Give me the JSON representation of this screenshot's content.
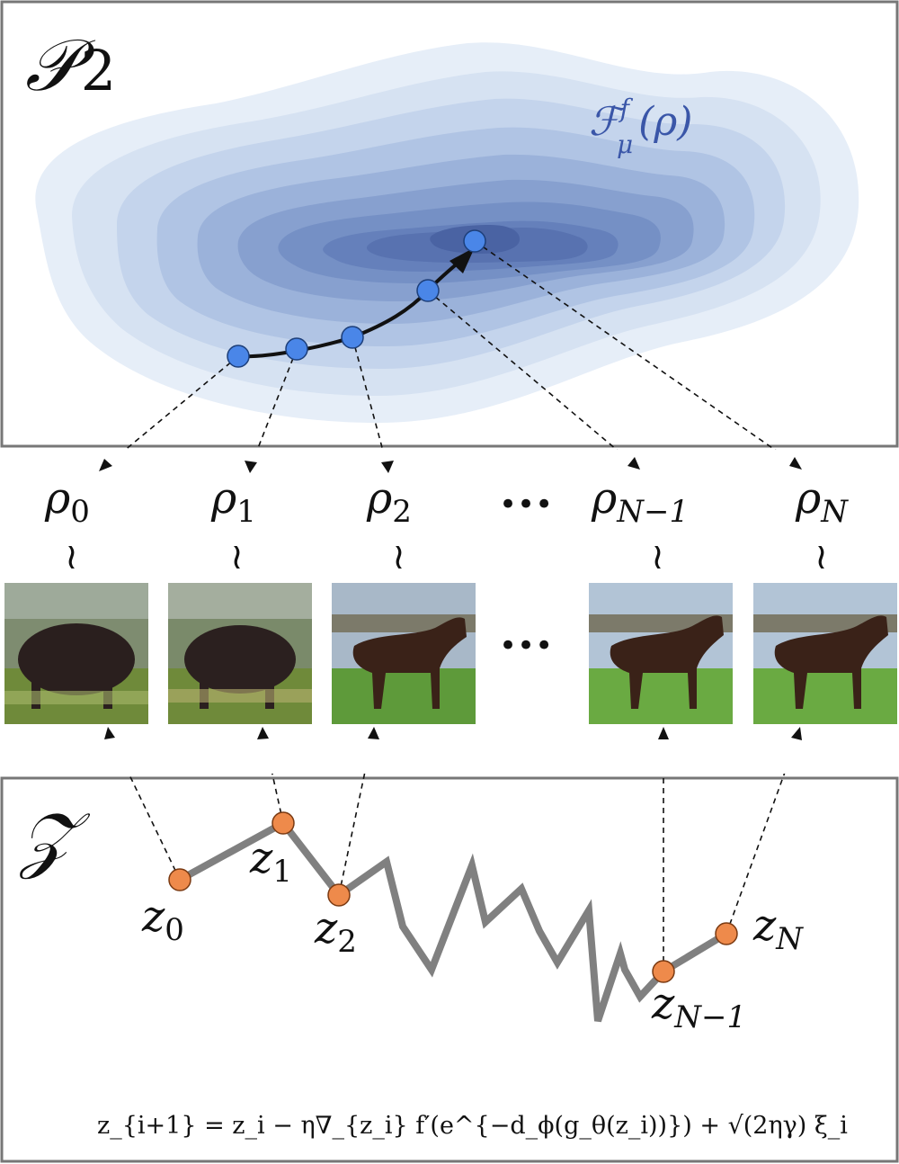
{
  "top_panel": {
    "space_label": "𝒫",
    "space_sub": "2",
    "functional": {
      "main": "ℱ",
      "sup": "f",
      "sub": "μ",
      "arg": "(ρ)"
    }
  },
  "rho_labels": [
    {
      "base": "ρ",
      "sub": "0"
    },
    {
      "base": "ρ",
      "sub": "1"
    },
    {
      "base": "ρ",
      "sub": "2"
    },
    {
      "base": "ρ",
      "sub": "N−1"
    },
    {
      "base": "ρ",
      "sub": "N"
    }
  ],
  "ellipsis": "•••",
  "tilde": "≀",
  "bottom_panel": {
    "space_label": "𝒵",
    "z_labels": [
      {
        "base": "z",
        "sub": "0"
      },
      {
        "base": "z",
        "sub": "1"
      },
      {
        "base": "z",
        "sub": "2"
      },
      {
        "base": "z",
        "sub": "N−1"
      },
      {
        "base": "z",
        "sub": "N"
      }
    ],
    "equation": "z_{i+1} = z_i − η∇_{z_i} f′(e^{−d_ϕ(g_θ(z_i))}) + √(2ηγ) ξ_i"
  },
  "colors": {
    "frame": "#777777",
    "contour_light": "#dde8f5",
    "contour_dark": "#3f5a99",
    "blue_node": "#4a86e8",
    "orange_node": "#ee8a4b",
    "path_gray": "#808080",
    "functional_text": "#3a56a8"
  },
  "icons": [
    "horse-thumbnail"
  ]
}
